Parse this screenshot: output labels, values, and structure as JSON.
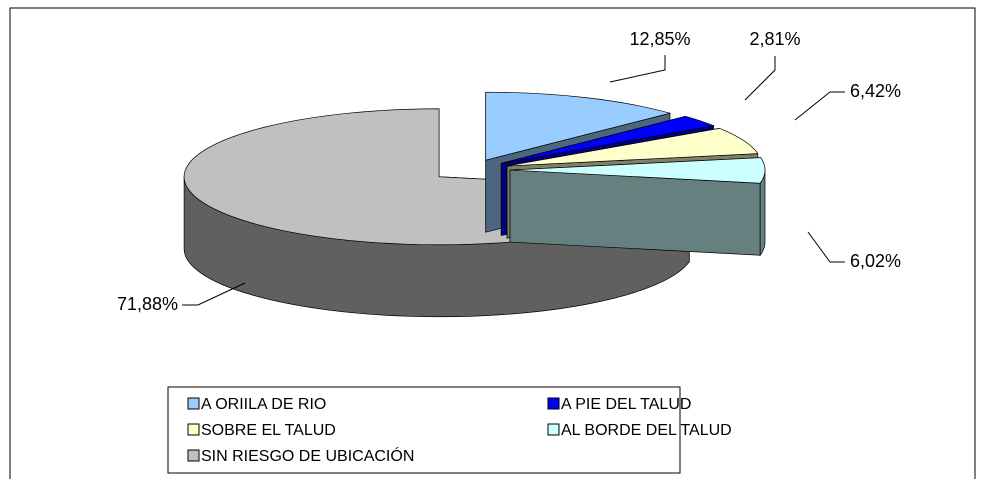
{
  "chart_data": {
    "type": "pie3d",
    "categories": [
      "A ORIILA DE RIO",
      "A PIE DEL TALUD",
      "SOBRE EL TALUD",
      "AL BORDE DEL TALUD",
      "SIN RIESGO DE UBICACIÓN"
    ],
    "values": [
      12.85,
      2.81,
      6.42,
      6.02,
      71.88
    ],
    "value_labels": [
      "12,85%",
      "2,81%",
      "6,42%",
      "6,02%",
      "71,88%"
    ],
    "colors": [
      "#99ccff",
      "#0000ff",
      "#ffffcc",
      "#ccffff",
      "#c0c0c0"
    ],
    "legend": "bottom"
  }
}
